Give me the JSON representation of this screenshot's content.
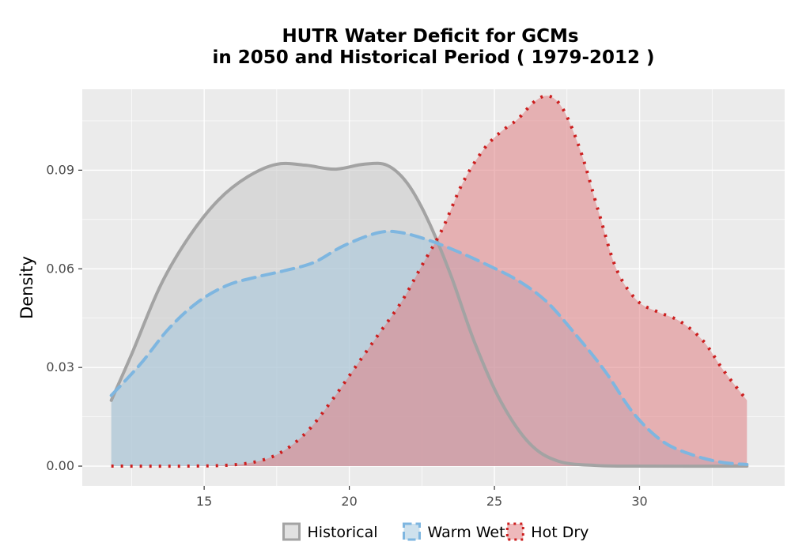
{
  "chart_data": {
    "type": "area",
    "title_line1": "HUTR  Water Deficit for GCMs",
    "title_line2": "in 2050 and Historical Period ( 1979-2012 )",
    "xlabel": "",
    "ylabel": "Density",
    "xlim": [
      10.8,
      35
    ],
    "ylim": [
      -0.006,
      0.1146
    ],
    "x_ticks": [
      15,
      20,
      25,
      30
    ],
    "y_ticks": [
      0.0,
      0.03,
      0.06,
      0.09
    ],
    "x_tick_labels": [
      "15",
      "20",
      "25",
      "30"
    ],
    "y_tick_labels": [
      "0.00",
      "0.03",
      "0.06",
      "0.09"
    ],
    "grid": true,
    "legend_position": "bottom",
    "series": [
      {
        "name": "Historical",
        "fill": "#c9c9c9",
        "line": "#a3a3a3",
        "line_style": "solid",
        "points": [
          [
            11.8,
            0.02
          ],
          [
            12.5,
            0.034
          ],
          [
            13.5,
            0.055
          ],
          [
            14.5,
            0.07
          ],
          [
            15.5,
            0.081
          ],
          [
            16.5,
            0.088
          ],
          [
            17.5,
            0.0918
          ],
          [
            18.5,
            0.0915
          ],
          [
            19.5,
            0.0903
          ],
          [
            20.5,
            0.0918
          ],
          [
            21.3,
            0.0915
          ],
          [
            22.0,
            0.086
          ],
          [
            22.7,
            0.075
          ],
          [
            23.5,
            0.058
          ],
          [
            24.3,
            0.038
          ],
          [
            25.2,
            0.02
          ],
          [
            26.2,
            0.007
          ],
          [
            27.2,
            0.0015
          ],
          [
            28.5,
            0.0002
          ],
          [
            30,
            0.0
          ],
          [
            33.7,
            0.0
          ]
        ]
      },
      {
        "name": "Warm Wet",
        "fill": "#a6c9de",
        "line": "#7eb6e0",
        "line_style": "dashed",
        "points": [
          [
            11.8,
            0.0215
          ],
          [
            12.8,
            0.031
          ],
          [
            13.8,
            0.042
          ],
          [
            14.8,
            0.05
          ],
          [
            15.8,
            0.055
          ],
          [
            16.8,
            0.0575
          ],
          [
            17.8,
            0.0595
          ],
          [
            18.8,
            0.062
          ],
          [
            19.8,
            0.067
          ],
          [
            21.0,
            0.071
          ],
          [
            21.8,
            0.071
          ],
          [
            22.8,
            0.0685
          ],
          [
            23.8,
            0.065
          ],
          [
            24.8,
            0.061
          ],
          [
            25.8,
            0.0565
          ],
          [
            26.8,
            0.05
          ],
          [
            27.8,
            0.04
          ],
          [
            28.8,
            0.029
          ],
          [
            29.8,
            0.016
          ],
          [
            30.8,
            0.0075
          ],
          [
            31.8,
            0.0035
          ],
          [
            32.8,
            0.0012
          ],
          [
            33.7,
            0.0005
          ]
        ]
      },
      {
        "name": "Hot Dry",
        "fill": "#e07f84",
        "line": "#cc1e1e",
        "line_style": "dotted",
        "points": [
          [
            11.8,
            0.0
          ],
          [
            14.5,
            0.0
          ],
          [
            16.0,
            0.0004
          ],
          [
            17.0,
            0.0018
          ],
          [
            17.8,
            0.005
          ],
          [
            18.6,
            0.011
          ],
          [
            19.4,
            0.02
          ],
          [
            20.2,
            0.03
          ],
          [
            21.0,
            0.04
          ],
          [
            21.8,
            0.05
          ],
          [
            22.5,
            0.061
          ],
          [
            23.2,
            0.072
          ],
          [
            23.9,
            0.086
          ],
          [
            24.6,
            0.096
          ],
          [
            25.2,
            0.1015
          ],
          [
            25.8,
            0.1055
          ],
          [
            26.4,
            0.111
          ],
          [
            26.9,
            0.1125
          ],
          [
            27.4,
            0.108
          ],
          [
            28.0,
            0.095
          ],
          [
            28.6,
            0.077
          ],
          [
            29.2,
            0.06
          ],
          [
            29.9,
            0.0505
          ],
          [
            30.6,
            0.047
          ],
          [
            31.4,
            0.044
          ],
          [
            32.2,
            0.038
          ],
          [
            32.9,
            0.029
          ],
          [
            33.7,
            0.02
          ]
        ]
      }
    ]
  }
}
